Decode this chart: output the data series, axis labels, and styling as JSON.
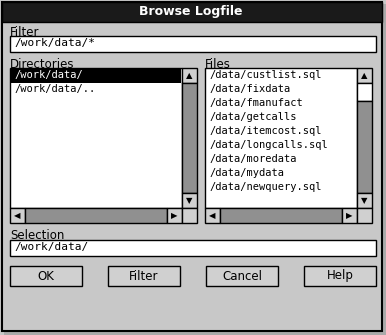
{
  "title": "Browse Logfile",
  "title_bg": "#1a1a1a",
  "title_fg": "#ffffff",
  "bg_color": "#c8c8c8",
  "white": "#ffffff",
  "black": "#000000",
  "gray": "#909090",
  "light_gray": "#d0d0d0",
  "filter_label": "Filter",
  "filter_value": "/work/data/*",
  "dirs_label": "Directories",
  "dirs_items": [
    "/work/data/",
    "/work/data/.."
  ],
  "files_label": "Files",
  "files_items": [
    "/data/custlist.sql",
    "/data/fixdata",
    "/data/fmanufact",
    "/data/getcalls",
    "/data/itemcost.sql",
    "/data/longcalls.sql",
    "/data/moredata",
    "/data/mydata",
    "/data/newquery.sql"
  ],
  "selection_label": "Selection",
  "selection_value": "/work/data/",
  "buttons": [
    "OK",
    "Filter",
    "Cancel",
    "Help"
  ],
  "fig_w": 3.86,
  "fig_h": 3.35,
  "dpi": 100
}
